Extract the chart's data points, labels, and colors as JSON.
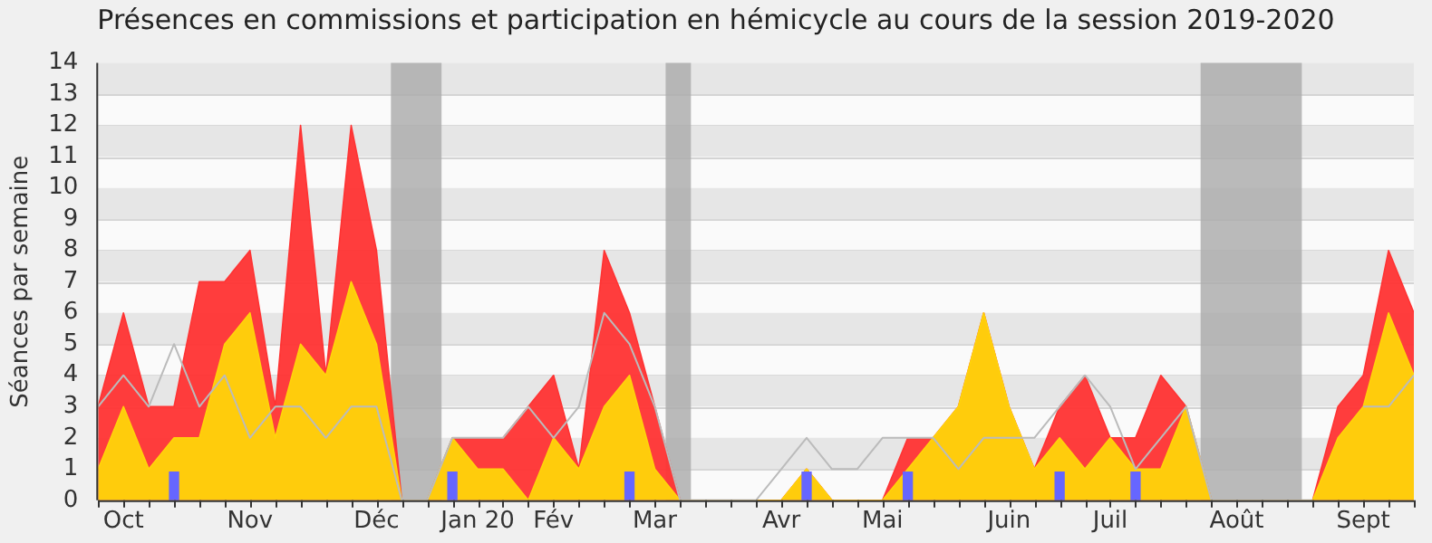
{
  "chart_data": {
    "type": "area",
    "title": "Présences en commissions et participation en hémicycle au cours de la session 2019-2020",
    "ylabel": "Séances par semaine",
    "x": [
      "2019-09-30",
      "2019-10-07",
      "2019-10-14",
      "2019-10-21",
      "2019-10-28",
      "2019-11-04",
      "2019-11-11",
      "2019-11-18",
      "2019-11-25",
      "2019-12-02",
      "2019-12-09",
      "2019-12-16",
      "2019-12-23",
      "2019-12-30",
      "2020-01-06",
      "2020-01-13",
      "2020-01-20",
      "2020-01-27",
      "2020-02-03",
      "2020-02-10",
      "2020-02-17",
      "2020-02-24",
      "2020-03-02",
      "2020-03-09",
      "2020-03-16",
      "2020-03-23",
      "2020-03-30",
      "2020-04-06",
      "2020-04-13",
      "2020-04-20",
      "2020-04-27",
      "2020-05-04",
      "2020-05-11",
      "2020-05-18",
      "2020-05-25",
      "2020-06-01",
      "2020-06-08",
      "2020-06-15",
      "2020-06-22",
      "2020-06-29",
      "2020-07-06",
      "2020-07-13",
      "2020-07-20",
      "2020-07-27",
      "2020-08-03",
      "2020-08-10",
      "2020-08-17",
      "2020-08-24",
      "2020-08-31",
      "2020-09-07",
      "2020-09-14",
      "2020-09-21",
      "2020-09-28"
    ],
    "series": [
      {
        "color": "#ff3333",
        "values": [
          3,
          6,
          3,
          3,
          7,
          7,
          8,
          3,
          12,
          4,
          12,
          8,
          0,
          0,
          2,
          2,
          2,
          3,
          4,
          1,
          8,
          6,
          3,
          0,
          0,
          0,
          0,
          0,
          1,
          0,
          0,
          0,
          2,
          2,
          3,
          6,
          3,
          1,
          3,
          4,
          2,
          2,
          4,
          3,
          0,
          0,
          0,
          0,
          0,
          3,
          4,
          8,
          6
        ]
      },
      {
        "color": "#ffd40a",
        "values": [
          1,
          3,
          1,
          2,
          2,
          5,
          6,
          2,
          5,
          4,
          7,
          5,
          0,
          0,
          2,
          1,
          1,
          0,
          2,
          1,
          3,
          4,
          1,
          0,
          0,
          0,
          0,
          0,
          1,
          0,
          0,
          0,
          1,
          2,
          3,
          6,
          3,
          1,
          2,
          1,
          2,
          1,
          1,
          3,
          0,
          0,
          0,
          0,
          0,
          2,
          3,
          6,
          4
        ]
      },
      {
        "type": "line",
        "color": "#bbbbbb",
        "values": [
          3,
          4,
          3,
          5,
          3,
          4,
          2,
          3,
          3,
          2,
          3,
          3,
          0,
          0,
          2,
          2,
          2,
          3,
          2,
          3,
          6,
          5,
          3,
          0,
          0,
          0,
          0,
          1,
          2,
          1,
          1,
          2,
          2,
          2,
          1,
          2,
          2,
          2,
          3,
          4,
          3,
          1,
          2,
          3,
          0,
          0,
          0,
          0,
          0,
          null,
          3,
          3,
          4
        ]
      },
      {
        "type": "bar",
        "color": "#6666ff",
        "values": [
          null,
          null,
          null,
          0.9,
          null,
          null,
          null,
          null,
          null,
          null,
          null,
          null,
          null,
          null,
          0.9,
          null,
          null,
          null,
          null,
          null,
          null,
          0.9,
          null,
          null,
          null,
          null,
          null,
          null,
          0.9,
          null,
          null,
          null,
          0.9,
          null,
          null,
          null,
          null,
          null,
          0.9,
          null,
          null,
          0.9,
          null,
          null,
          null,
          null,
          null,
          null,
          null,
          null,
          null,
          null,
          null
        ]
      }
    ],
    "xlim": [
      "2019-09-30",
      "2020-09-28"
    ],
    "xticks": [
      {
        "value": "2019-10-07",
        "label": "Oct"
      },
      {
        "value": "2019-11-11",
        "label": "Nov"
      },
      {
        "value": "2019-12-16",
        "label": "Déc"
      },
      {
        "value": "2020-01-13",
        "label": "Jan 20"
      },
      {
        "value": "2020-02-03",
        "label": "Fév"
      },
      {
        "value": "2020-03-02",
        "label": "Mar"
      },
      {
        "value": "2020-04-06",
        "label": "Avr"
      },
      {
        "value": "2020-05-04",
        "label": "Mai"
      },
      {
        "value": "2020-06-08",
        "label": "Juin"
      },
      {
        "value": "2020-07-06",
        "label": "Juil"
      },
      {
        "value": "2020-08-10",
        "label": "Août"
      },
      {
        "value": "2020-09-14",
        "label": "Sept"
      }
    ],
    "ylim": [
      0,
      14
    ],
    "yticks": [
      0,
      1,
      2,
      3,
      4,
      5,
      6,
      7,
      8,
      9,
      10,
      11,
      12,
      13,
      14
    ],
    "bands": [
      {
        "axis": "x",
        "from": "2019-12-20",
        "to": "2020-01-03",
        "color": "#aaaaaa"
      },
      {
        "axis": "x",
        "from": "2020-03-05",
        "to": "2020-03-12",
        "color": "#aaaaaa"
      },
      {
        "axis": "x",
        "from": "2020-07-31",
        "to": "2020-08-28",
        "color": "#aaaaaa"
      }
    ],
    "grid": "y",
    "legend": false
  }
}
